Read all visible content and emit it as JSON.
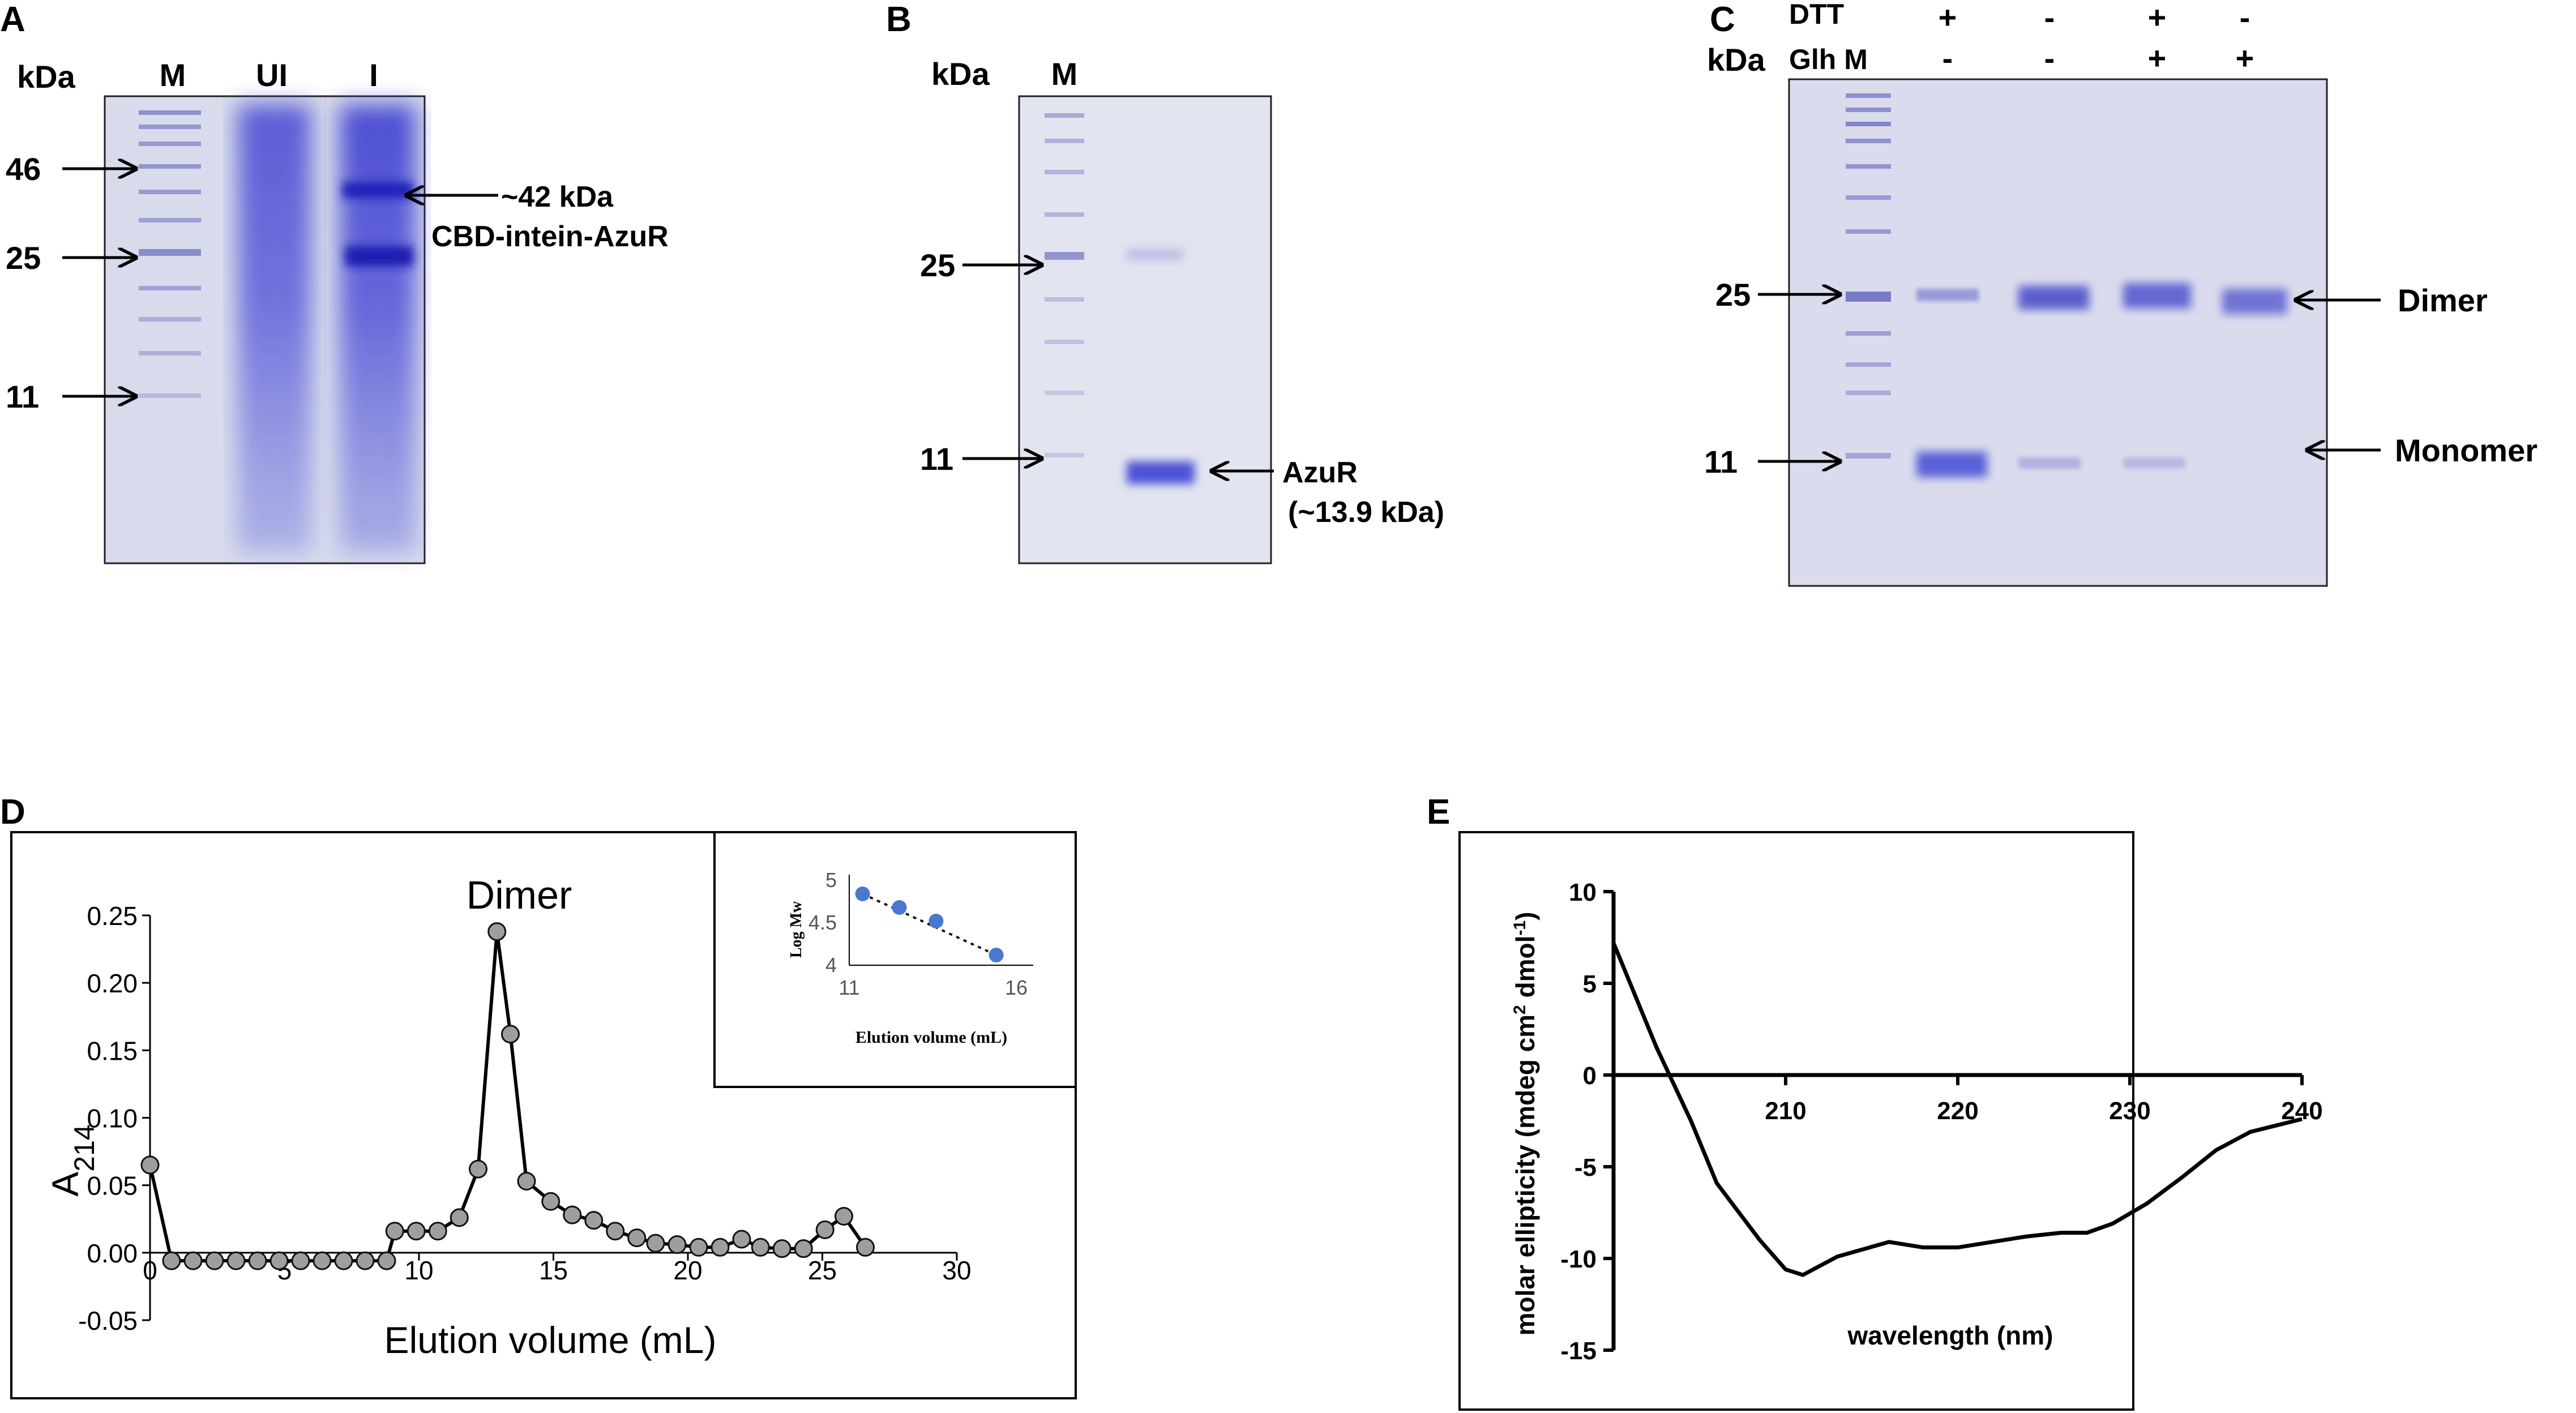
{
  "panels": {
    "A": {
      "letter": "A",
      "kda_label": "kDa",
      "lane_labels": [
        "M",
        "UI",
        "I"
      ],
      "markers": [
        "46",
        "25",
        "11"
      ],
      "band_label_1": "~42 kDa",
      "band_label_2": "CBD-intein-AzuR"
    },
    "B": {
      "letter": "B",
      "kda_label": "kDa",
      "lane_label": "M",
      "markers": [
        "25",
        "11"
      ],
      "band_label_1": "AzuR",
      "band_label_2": "(~13.9 kDa)"
    },
    "C": {
      "letter": "C",
      "row1_label": "DTT",
      "row2_label": "Glh M",
      "kda_label": "kDa",
      "row1_signs": [
        "+",
        "-",
        "+",
        "-"
      ],
      "row2_signs": [
        "-",
        "-",
        "+",
        "+"
      ],
      "markers": [
        "25",
        "11"
      ],
      "dimer_label": "Dimer",
      "monomer_label": "Monomer"
    },
    "D": {
      "letter": "D"
    },
    "E": {
      "letter": "E"
    }
  },
  "chart_data": [
    {
      "panel": "D",
      "type": "line",
      "title": "",
      "annotation": "Dimer",
      "xlabel": "Elution volume (mL)",
      "ylabel_main": "A",
      "ylabel_sub": "214",
      "xlim": [
        0,
        30
      ],
      "ylim": [
        -0.05,
        0.25
      ],
      "xticks": [
        0,
        5,
        10,
        15,
        20,
        25,
        30
      ],
      "yticks": [
        "-0.05",
        "0.00",
        "0.05",
        "0.10",
        "0.15",
        "0.20",
        "0.25"
      ],
      "x": [
        0,
        0.8,
        1.6,
        2.4,
        3.2,
        4.0,
        4.8,
        5.6,
        6.4,
        7.2,
        8.0,
        8.8,
        9.1,
        9.9,
        10.7,
        11.5,
        12.2,
        12.9,
        13.4,
        14.0,
        14.9,
        15.7,
        16.5,
        17.3,
        18.1,
        18.8,
        19.6,
        20.4,
        21.2,
        22.0,
        22.7,
        23.5,
        24.3,
        25.1,
        25.8,
        26.6
      ],
      "y": [
        0.065,
        -0.006,
        -0.006,
        -0.006,
        -0.006,
        -0.006,
        -0.006,
        -0.006,
        -0.006,
        -0.006,
        -0.006,
        -0.006,
        0.016,
        0.016,
        0.016,
        0.026,
        0.062,
        0.238,
        0.162,
        0.053,
        0.038,
        0.028,
        0.024,
        0.016,
        0.011,
        0.007,
        0.006,
        0.004,
        0.004,
        0.01,
        0.004,
        0.003,
        0.003,
        0.017,
        0.027,
        0.004
      ],
      "inset": {
        "type": "scatter",
        "xlabel": "Elution volume (mL)",
        "ylabel": "Log Mw",
        "xlim": [
          11,
          16
        ],
        "ylim": [
          4,
          5
        ],
        "xticks": [
          "11",
          "16"
        ],
        "yticks": [
          "4",
          "4.5",
          "5"
        ],
        "x": [
          11.4,
          12.5,
          13.6,
          15.4
        ],
        "y": [
          4.84,
          4.68,
          4.52,
          4.12
        ]
      }
    },
    {
      "panel": "E",
      "type": "line",
      "title": "",
      "xlabel": "wavelength (nm)",
      "ylabel_parts": [
        "molar ellipticity (mdeg cm",
        "2",
        " dmol",
        "-1",
        ")"
      ],
      "xlim": [
        200,
        240
      ],
      "ylim": [
        -15,
        10
      ],
      "xticks": [
        "210",
        "220",
        "230",
        "240"
      ],
      "yticks": [
        "10",
        "5",
        "0",
        "-5",
        "-10",
        "-15"
      ],
      "x": [
        200,
        202.5,
        204.5,
        206,
        208.5,
        210,
        211,
        213,
        216,
        218,
        220,
        222,
        224,
        226,
        227.5,
        229,
        231,
        233,
        235,
        237,
        240
      ],
      "y": [
        7.2,
        1.5,
        -2.5,
        -5.9,
        -9.0,
        -10.6,
        -10.9,
        -9.9,
        -9.1,
        -9.4,
        -9.4,
        -9.1,
        -8.8,
        -8.6,
        -8.6,
        -8.1,
        -7.0,
        -5.6,
        -4.1,
        -3.1,
        -2.4
      ]
    }
  ]
}
